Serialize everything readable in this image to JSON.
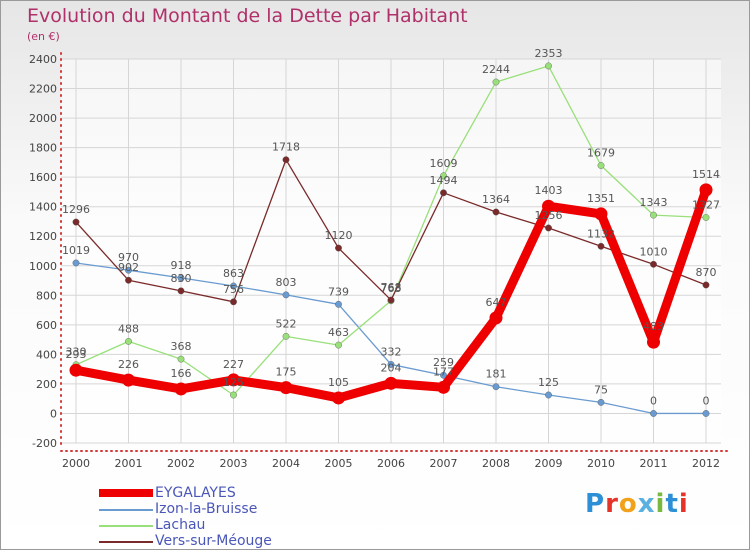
{
  "chart_data": {
    "type": "line",
    "title": "Evolution du Montant de la Dette par Habitant",
    "subtitle": "(en €)",
    "x": [
      "2000",
      "2001",
      "2002",
      "2003",
      "2004",
      "2005",
      "2006",
      "2007",
      "2008",
      "2009",
      "2010",
      "2011",
      "2012"
    ],
    "ylim": [
      -200,
      2400
    ],
    "yticks": [
      -200,
      0,
      200,
      400,
      600,
      800,
      1000,
      1200,
      1400,
      1600,
      1800,
      2000,
      2200,
      2400
    ],
    "grid": true,
    "legend_position": "bottom-left",
    "series": [
      {
        "name": "EYGALAYES",
        "color": "#ee0000",
        "values": [
          293,
          226,
          166,
          227,
          175,
          105,
          204,
          177,
          647,
          1403,
          1351,
          483,
          1514
        ]
      },
      {
        "name": "Izon-la-Bruisse",
        "color": "#6a9bd0",
        "values": [
          1019,
          970,
          918,
          863,
          803,
          739,
          332,
          259,
          181,
          125,
          75,
          0,
          0
        ]
      },
      {
        "name": "Lachau",
        "color": "#99e07a",
        "values": [
          330,
          488,
          368,
          125,
          522,
          463,
          763,
          1609,
          2244,
          2353,
          1679,
          1343,
          1327
        ]
      },
      {
        "name": "Vers-sur-Méouge",
        "color": "#7a2a2a",
        "values": [
          1296,
          902,
          830,
          756,
          1718,
          1120,
          768,
          1494,
          1364,
          1256,
          1132,
          1010,
          870
        ]
      }
    ]
  },
  "logo": {
    "p": "P",
    "r": "r",
    "o": "o",
    "x": "x",
    "i1": "i",
    "t": "t",
    "i2": "i"
  }
}
